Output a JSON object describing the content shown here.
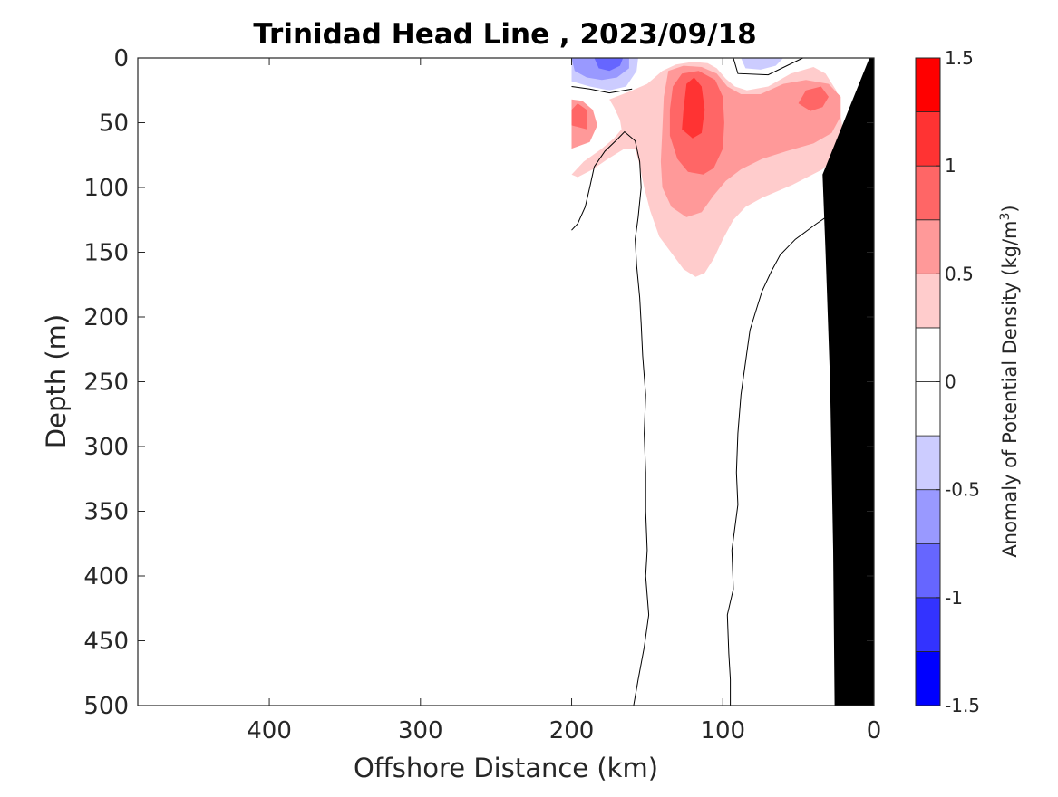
{
  "chart_data": {
    "type": "heatmap",
    "title": "Trinidad Head Line , 2023/09/18",
    "xlabel": "Offshore Distance (km)",
    "ylabel": "Depth (m)",
    "xlim": [
      487,
      0
    ],
    "ylim": [
      500,
      0
    ],
    "x_reversed": true,
    "y_reversed": true,
    "xticks": [
      400,
      300,
      200,
      100,
      0
    ],
    "yticks": [
      0,
      50,
      100,
      150,
      200,
      250,
      300,
      350,
      400,
      450,
      500
    ],
    "colorbar": {
      "label": "Anomaly of Potential Density (kg/m",
      "label_superscript": "3",
      "label_close": ")",
      "range": [
        -1.5,
        1.5
      ],
      "ticks": [
        1.5,
        1,
        0.5,
        0,
        -0.5,
        -1,
        -1.5
      ],
      "tick_labels": [
        "1.5",
        "1",
        "0.5",
        "0",
        "-0.5",
        "-1",
        "-1.5"
      ],
      "levels": [
        -1.5,
        -1.25,
        -1.0,
        -0.75,
        -0.5,
        -0.25,
        0,
        0.25,
        0.5,
        0.75,
        1.0,
        1.25,
        1.5
      ],
      "colors": [
        "#0000ff",
        "#3333ff",
        "#6666ff",
        "#9999ff",
        "#ccccff",
        "#ffffff",
        "#ffffff",
        "#ffcccc",
        "#ff9999",
        "#ff6666",
        "#ff3333",
        "#ff0000"
      ]
    },
    "contour_zero_lines": [
      {
        "points": [
          [
            200,
            133
          ],
          [
            196,
            128
          ],
          [
            191,
            115
          ],
          [
            188,
            100
          ],
          [
            185,
            84
          ],
          [
            178,
            72
          ],
          [
            170,
            63
          ],
          [
            165,
            57
          ],
          [
            158,
            64
          ],
          [
            155,
            80
          ],
          [
            154,
            100
          ],
          [
            156,
            123
          ],
          [
            158,
            140
          ],
          [
            157,
            160
          ],
          [
            155,
            185
          ],
          [
            154,
            205
          ],
          [
            153,
            230
          ],
          [
            151,
            260
          ],
          [
            152,
            290
          ],
          [
            151,
            320
          ],
          [
            151,
            350
          ],
          [
            150,
            380
          ],
          [
            151,
            400
          ],
          [
            149,
            430
          ],
          [
            152,
            455
          ],
          [
            156,
            480
          ],
          [
            159,
            500
          ]
        ]
      },
      {
        "points": [
          [
            20,
            112
          ],
          [
            28,
            120
          ],
          [
            38,
            128
          ],
          [
            52,
            140
          ],
          [
            62,
            152
          ],
          [
            68,
            165
          ],
          [
            74,
            180
          ],
          [
            78,
            195
          ],
          [
            82,
            210
          ],
          [
            85,
            235
          ],
          [
            88,
            260
          ],
          [
            90,
            290
          ],
          [
            91,
            320
          ],
          [
            90,
            345
          ],
          [
            94,
            380
          ],
          [
            93,
            410
          ],
          [
            97,
            430
          ],
          [
            96,
            460
          ],
          [
            95,
            480
          ],
          [
            95,
            500
          ]
        ]
      },
      {
        "points": [
          [
            200,
            22
          ],
          [
            188,
            24
          ],
          [
            175,
            27
          ],
          [
            160,
            24
          ]
        ]
      },
      {
        "points": [
          [
            93,
            0
          ],
          [
            90,
            12
          ],
          [
            70,
            13
          ],
          [
            47,
            0
          ]
        ]
      }
    ],
    "shaded_regions": [
      {
        "anomaly": 0.375,
        "points": [
          [
            200,
            90
          ],
          [
            192,
            80
          ],
          [
            180,
            70
          ],
          [
            172,
            62
          ],
          [
            167,
            55
          ],
          [
            168,
            48
          ],
          [
            172,
            38
          ],
          [
            175,
            32
          ],
          [
            162,
            26
          ],
          [
            150,
            20
          ],
          [
            140,
            10
          ],
          [
            131,
            5
          ],
          [
            120,
            3
          ],
          [
            110,
            4
          ],
          [
            104,
            8
          ],
          [
            98,
            16
          ],
          [
            92,
            22
          ],
          [
            84,
            25
          ],
          [
            70,
            22
          ],
          [
            55,
            12
          ],
          [
            40,
            7
          ],
          [
            32,
            12
          ],
          [
            25,
            25
          ],
          [
            22,
            45
          ],
          [
            20,
            60
          ],
          [
            24,
            75
          ],
          [
            34,
            86
          ],
          [
            44,
            92
          ],
          [
            54,
            98
          ],
          [
            64,
            103
          ],
          [
            74,
            108
          ],
          [
            85,
            115
          ],
          [
            93,
            125
          ],
          [
            100,
            140
          ],
          [
            106,
            155
          ],
          [
            112,
            166
          ],
          [
            118,
            169
          ],
          [
            126,
            163
          ],
          [
            133,
            152
          ],
          [
            142,
            138
          ],
          [
            148,
            118
          ],
          [
            152,
            100
          ],
          [
            155,
            83
          ],
          [
            158,
            70
          ],
          [
            165,
            70
          ],
          [
            176,
            78
          ],
          [
            186,
            86
          ],
          [
            196,
            92
          ]
        ]
      },
      {
        "anomaly": 0.625,
        "points": [
          [
            200,
            70
          ],
          [
            188,
            65
          ],
          [
            183,
            52
          ],
          [
            186,
            40
          ],
          [
            193,
            33
          ],
          [
            200,
            32
          ]
        ]
      },
      {
        "anomaly": 0.625,
        "points": [
          [
            139,
            30
          ],
          [
            136,
            10
          ],
          [
            126,
            6
          ],
          [
            114,
            7
          ],
          [
            104,
            12
          ],
          [
            97,
            22
          ],
          [
            88,
            28
          ],
          [
            75,
            28
          ],
          [
            60,
            20
          ],
          [
            45,
            17
          ],
          [
            30,
            20
          ],
          [
            22,
            30
          ],
          [
            22,
            45
          ],
          [
            28,
            58
          ],
          [
            40,
            66
          ],
          [
            58,
            72
          ],
          [
            74,
            78
          ],
          [
            88,
            86
          ],
          [
            98,
            95
          ],
          [
            106,
            106
          ],
          [
            114,
            119
          ],
          [
            124,
            123
          ],
          [
            134,
            115
          ],
          [
            140,
            100
          ],
          [
            141,
            80
          ],
          [
            140,
            55
          ]
        ]
      },
      {
        "anomaly": 0.875,
        "points": [
          [
            190,
            55
          ],
          [
            190,
            40
          ],
          [
            196,
            35
          ],
          [
            200,
            40
          ],
          [
            200,
            52
          ]
        ]
      },
      {
        "anomaly": 0.875,
        "points": [
          [
            135,
            40
          ],
          [
            133,
            22
          ],
          [
            127,
            12
          ],
          [
            116,
            10
          ],
          [
            105,
            17
          ],
          [
            100,
            30
          ],
          [
            99,
            50
          ],
          [
            100,
            70
          ],
          [
            106,
            85
          ],
          [
            113,
            90
          ],
          [
            123,
            88
          ],
          [
            130,
            78
          ],
          [
            135,
            60
          ]
        ]
      },
      {
        "anomaly": 0.875,
        "points": [
          [
            50,
            35
          ],
          [
            45,
            25
          ],
          [
            35,
            22
          ],
          [
            30,
            30
          ],
          [
            34,
            38
          ],
          [
            42,
            41
          ]
        ]
      },
      {
        "anomaly": 1.125,
        "points": [
          [
            124,
            20
          ],
          [
            126,
            40
          ],
          [
            127,
            55
          ],
          [
            120,
            62
          ],
          [
            114,
            58
          ],
          [
            112,
            40
          ],
          [
            114,
            22
          ],
          [
            119,
            15
          ]
        ]
      },
      {
        "anomaly": -0.375,
        "points": [
          [
            200,
            0
          ],
          [
            200,
            18
          ],
          [
            188,
            22
          ],
          [
            175,
            25
          ],
          [
            164,
            22
          ],
          [
            157,
            10
          ],
          [
            156,
            0
          ]
        ]
      },
      {
        "anomaly": -0.375,
        "points": [
          [
            88,
            0
          ],
          [
            85,
            8
          ],
          [
            75,
            9
          ],
          [
            65,
            6
          ],
          [
            60,
            0
          ]
        ]
      },
      {
        "anomaly": -0.625,
        "points": [
          [
            200,
            0
          ],
          [
            198,
            10
          ],
          [
            190,
            15
          ],
          [
            180,
            17
          ],
          [
            170,
            15
          ],
          [
            162,
            8
          ],
          [
            162,
            0
          ]
        ]
      },
      {
        "anomaly": -0.875,
        "points": [
          [
            185,
            0
          ],
          [
            182,
            8
          ],
          [
            175,
            10
          ],
          [
            168,
            6
          ],
          [
            166,
            0
          ]
        ]
      }
    ],
    "seafloor": {
      "points": [
        [
          0,
          0
        ],
        [
          0,
          500
        ],
        [
          26,
          500
        ],
        [
          27,
          380
        ],
        [
          29,
          250
        ],
        [
          32,
          150
        ],
        [
          34,
          90
        ],
        [
          3,
          0
        ]
      ]
    }
  }
}
